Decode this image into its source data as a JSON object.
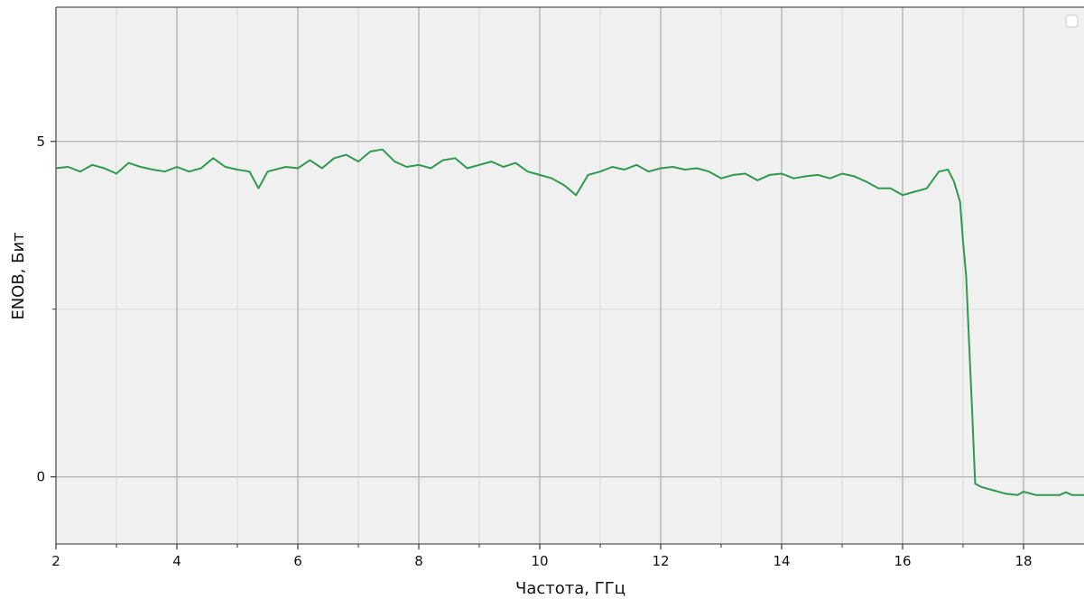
{
  "chart_data": {
    "type": "line",
    "title": "",
    "xlabel": "Частота, ГГц",
    "ylabel": "ENOB, Бит",
    "xlim": [
      2,
      19
    ],
    "ylim": [
      -1,
      7
    ],
    "x_ticks": [
      2,
      4,
      6,
      8,
      10,
      12,
      14,
      16,
      18
    ],
    "x_tick_labels": [
      "2",
      "4",
      "6",
      "8",
      "10",
      "12",
      "14",
      "16",
      "18"
    ],
    "x_minor_ticks": [
      3,
      5,
      7,
      9,
      11,
      13,
      15,
      17
    ],
    "y_ticks": [
      0,
      5
    ],
    "y_tick_labels": [
      "0",
      "5"
    ],
    "y_minor_ticks": [
      2.5
    ],
    "grid": true,
    "legend": "top-right (empty)",
    "colors": {
      "line": "#2e9a4f",
      "plot_background": "#f0f0f0",
      "major_grid": "#b0b0b0",
      "minor_grid": "#d9d9d9"
    },
    "series": [
      {
        "x": [
          2.0,
          2.2,
          2.4,
          2.6,
          2.8,
          3.0,
          3.2,
          3.4,
          3.6,
          3.8,
          4.0,
          4.2,
          4.4,
          4.6,
          4.8,
          5.0,
          5.2,
          5.35,
          5.5,
          5.8,
          6.0,
          6.2,
          6.4,
          6.6,
          6.8,
          7.0,
          7.2,
          7.4,
          7.6,
          7.8,
          8.0,
          8.2,
          8.4,
          8.6,
          8.8,
          9.0,
          9.2,
          9.4,
          9.6,
          9.8,
          10.0,
          10.2,
          10.4,
          10.6,
          10.8,
          11.0,
          11.2,
          11.4,
          11.6,
          11.8,
          12.0,
          12.2,
          12.4,
          12.6,
          12.8,
          13.0,
          13.2,
          13.4,
          13.6,
          13.8,
          14.0,
          14.2,
          14.4,
          14.6,
          14.8,
          15.0,
          15.2,
          15.4,
          15.6,
          15.8,
          16.0,
          16.2,
          16.4,
          16.6,
          16.75,
          16.85,
          16.95,
          17.0,
          17.05,
          17.1,
          17.15,
          17.2,
          17.3,
          17.5,
          17.7,
          17.9,
          18.0,
          18.2,
          18.4,
          18.6,
          18.7,
          18.8,
          19.0
        ],
        "y": [
          4.6,
          4.62,
          4.55,
          4.65,
          4.6,
          4.52,
          4.68,
          4.62,
          4.58,
          4.55,
          4.62,
          4.55,
          4.6,
          4.75,
          4.62,
          4.58,
          4.55,
          4.3,
          4.55,
          4.62,
          4.6,
          4.72,
          4.6,
          4.75,
          4.8,
          4.7,
          4.85,
          4.88,
          4.7,
          4.62,
          4.65,
          4.6,
          4.72,
          4.75,
          4.6,
          4.65,
          4.7,
          4.62,
          4.68,
          4.55,
          4.5,
          4.45,
          4.35,
          4.2,
          4.5,
          4.55,
          4.62,
          4.58,
          4.65,
          4.55,
          4.6,
          4.62,
          4.58,
          4.6,
          4.55,
          4.45,
          4.5,
          4.52,
          4.42,
          4.5,
          4.52,
          4.45,
          4.48,
          4.5,
          4.45,
          4.52,
          4.48,
          4.4,
          4.3,
          4.3,
          4.2,
          4.25,
          4.3,
          4.55,
          4.58,
          4.4,
          4.1,
          3.5,
          3.0,
          2.0,
          1.0,
          -0.1,
          -0.15,
          -0.2,
          -0.25,
          -0.27,
          -0.22,
          -0.27,
          -0.27,
          -0.27,
          -0.23,
          -0.27,
          -0.27
        ]
      }
    ]
  }
}
